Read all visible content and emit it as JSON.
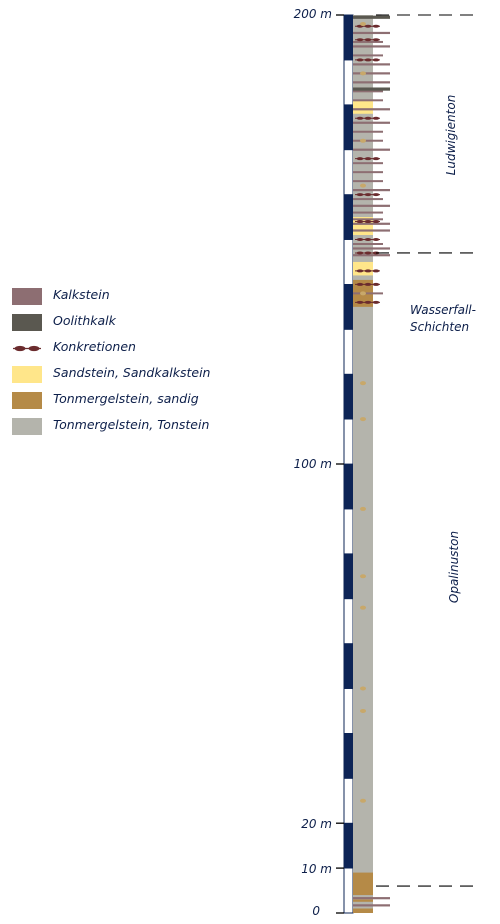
{
  "legend": [
    {
      "label": "Kalkstein",
      "color": "#8d6e72",
      "kind": "box"
    },
    {
      "label": "Oolithkalk",
      "color": "#5a5850",
      "kind": "box"
    },
    {
      "label": "Konkretionen",
      "color": "#6b2c2e",
      "kind": "concretion"
    },
    {
      "label": "Sandstein, Sandkalkstein",
      "color": "#ffe68a",
      "kind": "box"
    },
    {
      "label": "Tonmergelstein, sandig",
      "color": "#b58a47",
      "kind": "box"
    },
    {
      "label": "Tonmergelstein, Tonstein",
      "color": "#b4b4ac",
      "kind": "box"
    }
  ],
  "depth_labels": [
    {
      "text": "200 m",
      "value": 200
    },
    {
      "text": "100 m",
      "value": 100
    },
    {
      "text": "20 m",
      "value": 20
    },
    {
      "text": "10 m",
      "value": 10
    },
    {
      "text": "0",
      "value": 0
    }
  ],
  "units": [
    {
      "name": "Ludwigienton",
      "orientation": "vertical",
      "from": 147,
      "to": 200
    },
    {
      "name": "Wasserfall-\nSchichten",
      "orientation": "horizontal",
      "from": 134,
      "to": 147
    },
    {
      "name": "Opalinuston",
      "orientation": "vertical",
      "from": 6,
      "to": 134
    }
  ],
  "boundaries": [
    200,
    147,
    6
  ],
  "colors": {
    "ink": "#0d1f4a",
    "scale_dark": "#0d2456",
    "clay": "#b4b4ac",
    "kalk": "#8d6e72",
    "oolith": "#5a5850",
    "sand": "#ffe68a",
    "sandy_clay": "#b58a47",
    "concretion": "#6b2c2e",
    "dot": "#c8a86a"
  }
}
